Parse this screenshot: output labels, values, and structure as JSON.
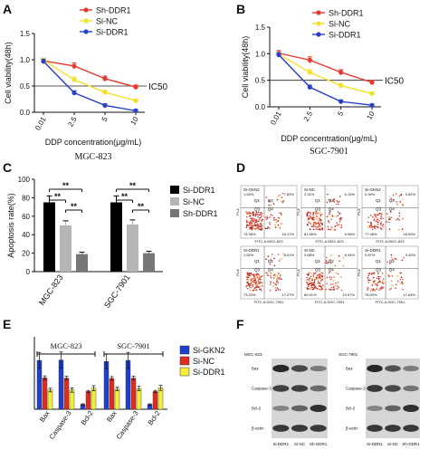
{
  "panel_letters": [
    "A",
    "B",
    "C",
    "D",
    "E",
    "F"
  ],
  "chart_data": [
    {
      "panel": "A",
      "type": "line",
      "title": "MGC-823",
      "xlabel": "DDP concentration(μg/mL)",
      "ylabel": "Cell viability(48h)",
      "categories": [
        "0.01",
        "2.5",
        "5",
        "10"
      ],
      "ylim": [
        0,
        1.5
      ],
      "yticks": [
        "0.0",
        "0.5",
        "1.0",
        "1.5"
      ],
      "reference_line": {
        "value": 0.5,
        "label": "IC50"
      },
      "series": [
        {
          "name": "Sh-DDR1",
          "color": "#e8392f",
          "values": [
            0.98,
            0.88,
            0.64,
            0.48
          ],
          "errors": [
            0.05,
            0.06,
            0.05,
            0.04
          ]
        },
        {
          "name": "Si-NC",
          "color": "#f2e12a",
          "values": [
            0.99,
            0.62,
            0.38,
            0.22
          ],
          "errors": [
            0.04,
            0.05,
            0.04,
            0.03
          ]
        },
        {
          "name": "Si-DDR1",
          "color": "#2b3fc8",
          "values": [
            0.97,
            0.37,
            0.13,
            0.03
          ],
          "errors": [
            0.04,
            0.04,
            0.03,
            0.02
          ]
        }
      ]
    },
    {
      "panel": "B",
      "type": "line",
      "title": "SGC-7901",
      "xlabel": "DDP concentration(μg/mL)",
      "ylabel": "Cell viability(48h)",
      "categories": [
        "0.01",
        "2.5",
        "5",
        "10"
      ],
      "ylim": [
        0,
        1.5
      ],
      "yticks": [
        "0.0",
        "0.5",
        "1.0",
        "1.5"
      ],
      "reference_line": {
        "value": 0.5,
        "label": "IC50"
      },
      "series": [
        {
          "name": "Sh-DDR1",
          "color": "#e8392f",
          "values": [
            1.01,
            0.88,
            0.65,
            0.46
          ],
          "errors": [
            0.05,
            0.06,
            0.05,
            0.04
          ]
        },
        {
          "name": "Si-NC",
          "color": "#f2e12a",
          "values": [
            0.99,
            0.65,
            0.4,
            0.25
          ],
          "errors": [
            0.04,
            0.05,
            0.04,
            0.03
          ]
        },
        {
          "name": "Si-DDR1",
          "color": "#2b3fc8",
          "values": [
            0.98,
            0.37,
            0.1,
            0.03
          ],
          "errors": [
            0.04,
            0.04,
            0.03,
            0.02
          ]
        }
      ]
    },
    {
      "panel": "C",
      "type": "bar",
      "ylabel": "Apoptosis rate(%)",
      "categories": [
        "MGC-823",
        "SGC-7901"
      ],
      "ylim": [
        0,
        100
      ],
      "yticks": [
        "0",
        "20",
        "40",
        "60",
        "80",
        "100"
      ],
      "significance": "**",
      "series": [
        {
          "name": "Si-DDR1",
          "color": "#000000",
          "values": [
            75,
            75
          ],
          "errors": [
            7,
            7
          ]
        },
        {
          "name": "Si-NC",
          "color": "#b5b5b5",
          "values": [
            50,
            51
          ],
          "errors": [
            5,
            5
          ]
        },
        {
          "name": "Sh-DDR1",
          "color": "#767676",
          "values": [
            19,
            20
          ],
          "errors": [
            2,
            2
          ]
        }
      ]
    },
    {
      "panel": "E",
      "type": "bar",
      "group_labels": [
        "MGC-823",
        "SGC-7901"
      ],
      "categories": [
        "Bax",
        "Caspase-3",
        "Bcl-2",
        "Bax",
        "Caspase-3",
        "Bcl-2"
      ],
      "ylim": [
        0,
        2.0
      ],
      "series": [
        {
          "name": "Si-GKN2",
          "color": "#1f3fcf",
          "values": [
            1.35,
            1.36,
            0.13,
            1.32,
            1.35,
            0.13
          ],
          "errors": [
            0.22,
            0.22,
            0.02,
            0.2,
            0.22,
            0.02
          ]
        },
        {
          "name": "Si-NC",
          "color": "#e32a1f",
          "values": [
            0.87,
            0.86,
            0.49,
            0.85,
            0.86,
            0.49
          ],
          "errors": [
            0.05,
            0.05,
            0.03,
            0.05,
            0.05,
            0.03
          ]
        },
        {
          "name": "Si-DDR1",
          "color": "#f4ef3a",
          "values": [
            0.53,
            0.53,
            0.58,
            0.56,
            0.57,
            0.59
          ],
          "errors": [
            0.05,
            0.06,
            0.07,
            0.05,
            0.06,
            0.07
          ]
        }
      ]
    }
  ],
  "flow_panel": {
    "plots": [
      {
        "cell": "MGC-823",
        "q1": "1.64%",
        "q2": "7.83%",
        "q3": "74.36%",
        "q4": "16.17%",
        "density": 1.0
      },
      {
        "cell": "MGC-823",
        "q1": "2.31%",
        "q2": "6.15%",
        "q3": "81.58%",
        "q4": "9.96%",
        "density": 0.9
      },
      {
        "cell": "MGC-823",
        "q1": "0.94%",
        "q2": "3.62%",
        "q3": "77.48%",
        "q4": "18.00%",
        "density": 0.55
      },
      {
        "cell": "SGC-7901",
        "q1": "1.52%",
        "q2": "8.01%",
        "q3": "73.20%",
        "q4": "17.27%",
        "density": 1.0
      },
      {
        "cell": "SGC-7901",
        "q1": "2.08%",
        "q2": "6.44%",
        "q3": "80.91%",
        "q4": "10.57%",
        "density": 0.9
      },
      {
        "cell": "SGC-7901",
        "q1": "0.87%",
        "q2": "3.40%",
        "q3": "78.09%",
        "q4": "17.64%",
        "density": 0.55
      }
    ],
    "tags": [
      "Si-GKN2",
      "Si-NC",
      "Si-GKN2",
      "Si-DDR1",
      "Si-NC",
      "Si-DDR1"
    ],
    "quadrant_names": [
      "Q1",
      "Q2",
      "Q3",
      "Q4"
    ],
    "axis_x": "FITC-A",
    "axis_y": "PI-A"
  },
  "blot_panel": {
    "blots": [
      {
        "cell": "MGC-823",
        "rows": [
          "Bax",
          "Caspase-3",
          "Bcl-2",
          "β-actin"
        ],
        "lanes": [
          "Si-DDR1",
          "Si-NC",
          "Sh-DDR1"
        ],
        "intensity": [
          [
            0.95,
            0.75,
            0.45
          ],
          [
            0.8,
            0.8,
            0.55
          ],
          [
            0.4,
            0.6,
            0.9
          ],
          [
            0.85,
            0.85,
            0.85
          ]
        ]
      },
      {
        "cell": "SGC-7901",
        "rows": [
          "Bax",
          "Caspase-3",
          "Bcl-2",
          "β-actin"
        ],
        "lanes": [
          "Si-DDR1",
          "Si-NC",
          "Sh-DDR1"
        ],
        "intensity": [
          [
            0.95,
            0.7,
            0.45
          ],
          [
            0.85,
            0.75,
            0.5
          ],
          [
            0.4,
            0.6,
            0.9
          ],
          [
            0.85,
            0.85,
            0.85
          ]
        ]
      }
    ]
  }
}
